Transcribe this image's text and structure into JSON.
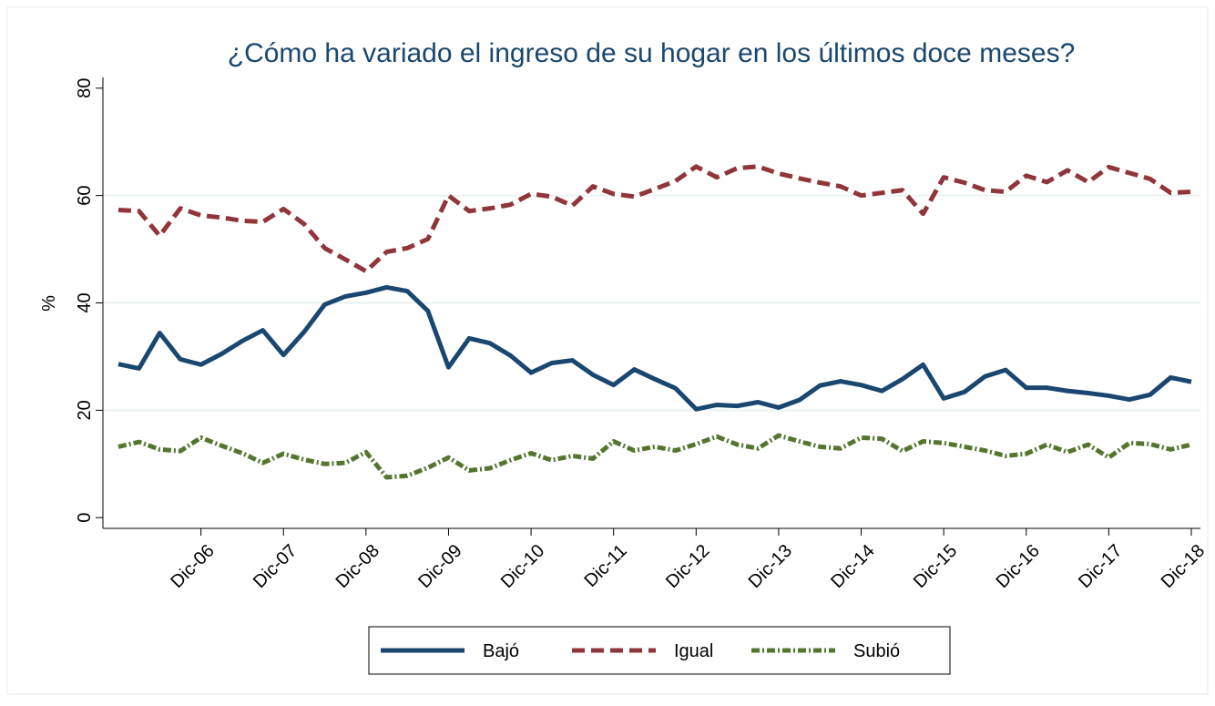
{
  "chart_data": {
    "type": "line",
    "title": "¿Cómo ha variado el ingreso de su hogar en los últimos doce meses?",
    "ylabel": "%",
    "categories": [
      null,
      null,
      null,
      null,
      "Dic-06",
      null,
      null,
      null,
      "Dic-07",
      null,
      null,
      null,
      "Dic-08",
      null,
      null,
      null,
      "Dic-09",
      null,
      null,
      null,
      "Dic-10",
      null,
      null,
      null,
      "Dic-11",
      null,
      null,
      null,
      "Dic-12",
      null,
      null,
      null,
      "Dic-13",
      null,
      null,
      null,
      "Dic-14",
      null,
      null,
      null,
      "Dic-15",
      null,
      null,
      null,
      "Dic-16",
      null,
      null,
      null,
      "Dic-17",
      null,
      null,
      null,
      "Dic-18"
    ],
    "series": [
      {
        "name": "Bajó",
        "color": "#1a476f",
        "values": [
          28.6,
          27.8,
          34.4,
          29.5,
          28.5,
          30.5,
          32.9,
          34.9,
          30.3,
          34.6,
          39.7,
          41.2,
          41.9,
          42.9,
          42.2,
          38.5,
          28.0,
          33.4,
          32.5,
          30.2,
          27.0,
          28.8,
          29.3,
          26.6,
          24.7,
          27.6,
          25.8,
          24.1,
          20.2,
          21.0,
          20.8,
          21.5,
          20.5,
          21.9,
          24.6,
          25.4,
          24.7,
          23.6,
          25.8,
          28.5,
          22.2,
          23.4,
          26.3,
          27.5,
          24.2,
          24.2,
          23.6,
          23.2,
          22.7,
          22.0,
          22.9,
          26.1,
          25.3
        ]
      },
      {
        "name": "Igual",
        "color": "#90353b",
        "values": [
          57.3,
          57.1,
          52.5,
          57.6,
          56.3,
          55.9,
          55.3,
          55.1,
          57.5,
          54.7,
          50.2,
          48.1,
          45.9,
          49.5,
          50.2,
          51.9,
          60.0,
          57.1,
          57.6,
          58.3,
          60.3,
          59.8,
          58.1,
          61.7,
          60.3,
          59.8,
          61.2,
          62.7,
          65.4,
          63.4,
          65.1,
          65.4,
          64.1,
          63.2,
          62.4,
          61.7,
          60.0,
          60.5,
          61.0,
          56.6,
          63.4,
          62.4,
          61.0,
          60.7,
          63.7,
          62.5,
          64.7,
          62.5,
          65.3,
          64.2,
          63.1,
          60.5,
          60.7
        ]
      },
      {
        "name": "Subió",
        "color": "#55752f",
        "values": [
          13.2,
          14.1,
          12.7,
          12.4,
          14.9,
          13.4,
          12.0,
          10.2,
          11.9,
          10.8,
          10.0,
          10.2,
          12.2,
          7.5,
          7.8,
          9.3,
          11.2,
          8.8,
          9.2,
          10.7,
          12.0,
          10.7,
          11.5,
          11.0,
          14.2,
          12.5,
          13.2,
          12.5,
          13.7,
          15.1,
          13.6,
          12.9,
          15.3,
          14.2,
          13.2,
          12.9,
          14.9,
          14.7,
          12.4,
          14.2,
          13.9,
          13.2,
          12.5,
          11.5,
          11.9,
          13.6,
          12.2,
          13.6,
          11.2,
          13.9,
          13.7,
          12.7,
          13.6
        ]
      }
    ],
    "ylim": [
      -2,
      82
    ],
    "yticks": [
      0,
      20,
      40,
      60,
      80
    ],
    "grid": true
  }
}
